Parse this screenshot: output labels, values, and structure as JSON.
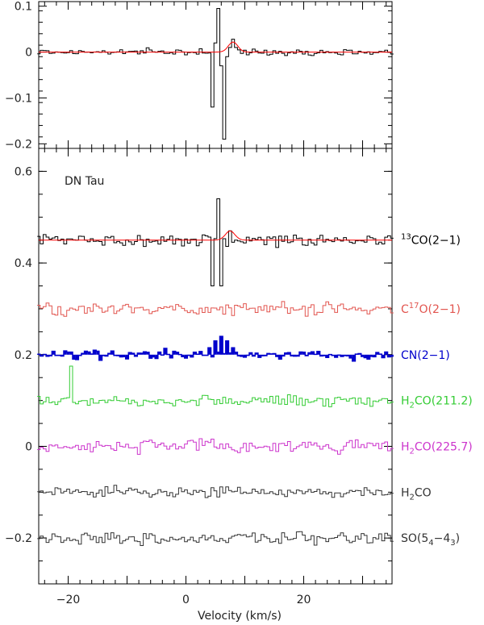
{
  "chart_data": [
    {
      "type": "line",
      "panel": "top",
      "xlim": [
        -25,
        35
      ],
      "ylim": [
        -0.21,
        0.11
      ],
      "yticks": [
        {
          "value": 0.1,
          "label": "0.1"
        },
        {
          "value": 0,
          "label": "0"
        },
        {
          "value": -0.1,
          "label": "−0.1"
        },
        {
          "value": -0.2,
          "label": "−0.2"
        }
      ],
      "baseline": 0,
      "series": [
        {
          "color": "#000000",
          "kind": "difference-spectrum",
          "x": [
            4.5,
            5.0,
            5.5,
            6.0,
            6.5,
            7.0,
            7.5,
            8.0,
            8.5
          ],
          "y": [
            -0.12,
            0.02,
            0.095,
            -0.03,
            -0.19,
            -0.01,
            0.01,
            0.028,
            0.01
          ]
        }
      ],
      "model": {
        "color": "#ff0000",
        "type": "gaussian",
        "center": 8.0,
        "amplitude": 0.022,
        "width": 0.8
      }
    },
    {
      "type": "line",
      "panel": "bottom",
      "xlim": [
        -25,
        35
      ],
      "ylim": [
        -0.3,
        0.65
      ],
      "xlabel": "Velocity (km/s)",
      "xticks": [
        {
          "value": -20,
          "label": "−20"
        },
        {
          "value": 0,
          "label": "0"
        },
        {
          "value": 20,
          "label": "20"
        }
      ],
      "yticks": [
        {
          "value": 0.6,
          "label": "0.6"
        },
        {
          "value": 0.4,
          "label": "0.4"
        },
        {
          "value": 0.2,
          "label": "0.2"
        },
        {
          "value": 0,
          "label": "0"
        },
        {
          "value": -0.2,
          "label": "−0.2"
        }
      ],
      "annotation": "DN Tau",
      "series": [
        {
          "name": "13CO(2-1)",
          "color": "#000000",
          "offset": 0.45,
          "noise": 0.012,
          "features": [
            {
              "x": 4.5,
              "y": -0.1
            },
            {
              "x": 5.5,
              "y": 0.09
            },
            {
              "x": 6.0,
              "y": -0.1
            },
            {
              "x": 7.5,
              "y": 0.02
            }
          ],
          "fit": {
            "color": "#ff0000",
            "center": 7.5,
            "amplitude": 0.02
          }
        },
        {
          "name": "C17O(2-1)",
          "color": "#e2554f",
          "offset": 0.3,
          "noise": 0.014
        },
        {
          "name": "CN(2-1)",
          "color": "#0000cc",
          "offset": 0.2,
          "noise": 0.01,
          "filled": true,
          "features": [
            {
              "x": 4.0,
              "y": 0.015
            },
            {
              "x": 5.0,
              "y": 0.03
            },
            {
              "x": 6.0,
              "y": 0.04
            },
            {
              "x": 7.0,
              "y": 0.03
            },
            {
              "x": 8.0,
              "y": 0.015
            }
          ]
        },
        {
          "name": "H2CO(211.2)",
          "color": "#33cc33",
          "offset": 0.1,
          "noise": 0.012,
          "features": [
            {
              "x": -19.5,
              "y": 0.075
            }
          ]
        },
        {
          "name": "H2CO(225.7)",
          "color": "#cc33cc",
          "offset": 0.0,
          "noise": 0.014
        },
        {
          "name": "H2CO",
          "color": "#333333",
          "offset": -0.1,
          "noise": 0.01
        },
        {
          "name": "SO(54-43)",
          "color": "#333333",
          "offset": -0.2,
          "noise": 0.014
        }
      ]
    }
  ]
}
